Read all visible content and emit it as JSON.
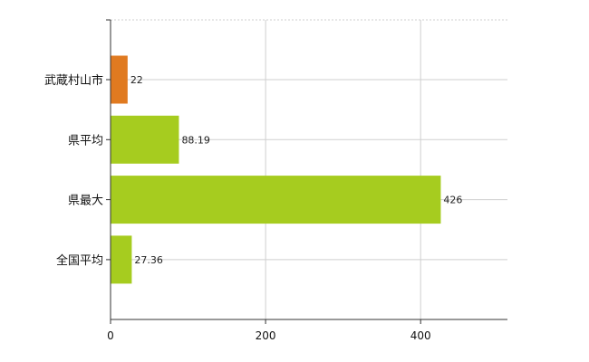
{
  "chart_data": {
    "type": "bar",
    "orientation": "horizontal",
    "categories": [
      "武蔵村山市",
      "県平均",
      "県最大",
      "全国平均"
    ],
    "values": [
      22,
      88.19,
      426,
      27.36
    ],
    "data_labels": [
      "22",
      "88.19",
      "426",
      "27.36"
    ],
    "bar_colors": [
      "#e07a20",
      "#a6cc1f",
      "#a6cc1f",
      "#a6cc1f"
    ],
    "xlim": [
      0,
      512
    ],
    "x_ticks": [
      0,
      200,
      400
    ],
    "x_tick_labels": [
      "0",
      "200",
      "400"
    ],
    "title": "",
    "xlabel": "",
    "ylabel": "",
    "grid": true,
    "legend": "none"
  }
}
